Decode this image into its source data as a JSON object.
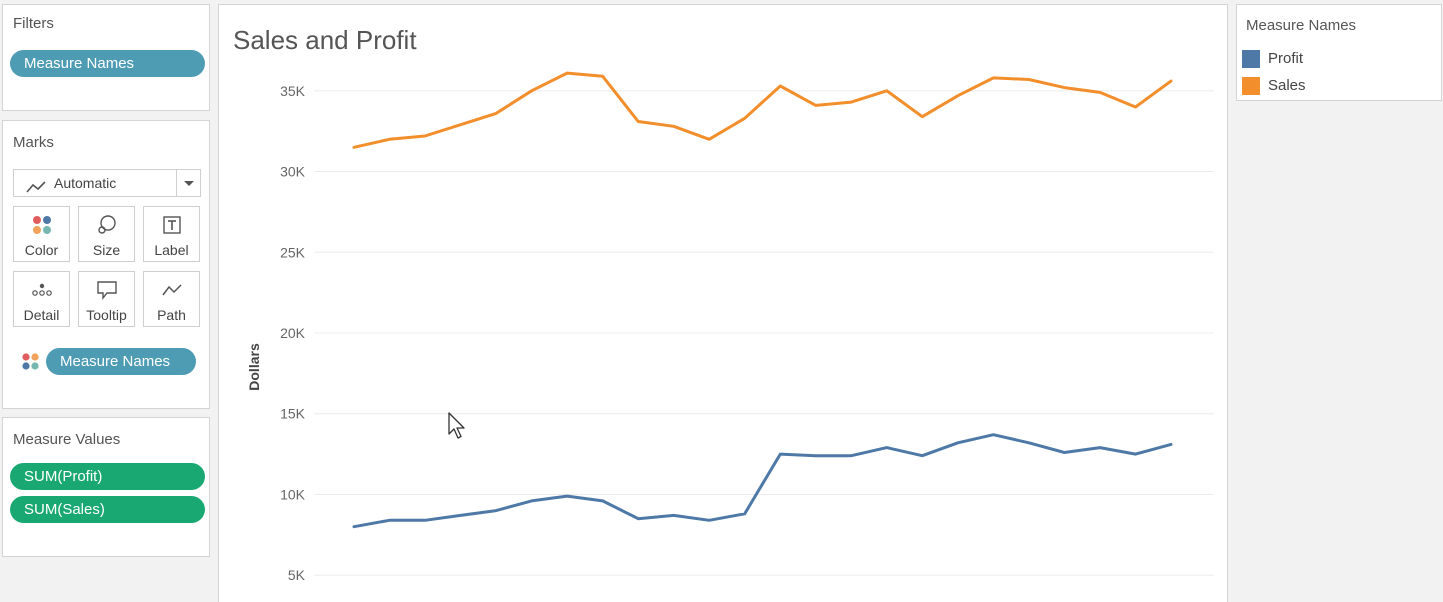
{
  "filters": {
    "title": "Filters",
    "pills": [
      {
        "label": "Measure Names"
      }
    ]
  },
  "marks": {
    "title": "Marks",
    "mark_type": "Automatic",
    "buttons": [
      {
        "label": "Color",
        "icon": "color-dots-icon"
      },
      {
        "label": "Size",
        "icon": "size-icon"
      },
      {
        "label": "Label",
        "icon": "label-icon"
      },
      {
        "label": "Detail",
        "icon": "detail-icon"
      },
      {
        "label": "Tooltip",
        "icon": "tooltip-icon"
      },
      {
        "label": "Path",
        "icon": "path-icon"
      }
    ],
    "color_pill": "Measure Names"
  },
  "measure_values": {
    "title": "Measure Values",
    "pills": [
      {
        "label": "SUM(Profit)"
      },
      {
        "label": "SUM(Sales)"
      }
    ]
  },
  "legend": {
    "title": "Measure Names",
    "items": [
      {
        "label": "Profit",
        "color": "#4e79a7"
      },
      {
        "label": "Sales",
        "color": "#f28e2b"
      }
    ]
  },
  "chart_data": {
    "type": "line",
    "title": "Sales and Profit",
    "ylabel": "Dollars",
    "ylim": [
      3400,
      36600
    ],
    "yticks": [
      {
        "value": 5000,
        "label": "5K"
      },
      {
        "value": 10000,
        "label": "10K"
      },
      {
        "value": 15000,
        "label": "15K"
      },
      {
        "value": 20000,
        "label": "20K"
      },
      {
        "value": 25000,
        "label": "25K"
      },
      {
        "value": 30000,
        "label": "30K"
      },
      {
        "value": 35000,
        "label": "35K"
      }
    ],
    "grid": true,
    "series": [
      {
        "name": "Sales",
        "color": "#f28e2b",
        "values": [
          31500,
          32000,
          32200,
          32900,
          33600,
          35000,
          36100,
          35900,
          33100,
          32800,
          32000,
          33300,
          35300,
          34100,
          34300,
          35000,
          33400,
          34700,
          35800,
          35700,
          35200,
          34900,
          34000,
          35600
        ]
      },
      {
        "name": "Profit",
        "color": "#4e79a7",
        "values": [
          8000,
          8400,
          8400,
          8700,
          9000,
          9600,
          9900,
          9600,
          8500,
          8700,
          8400,
          8800,
          12500,
          12400,
          12400,
          12900,
          12400,
          13200,
          13700,
          13200,
          12600,
          12900,
          12500,
          13100
        ]
      }
    ]
  }
}
